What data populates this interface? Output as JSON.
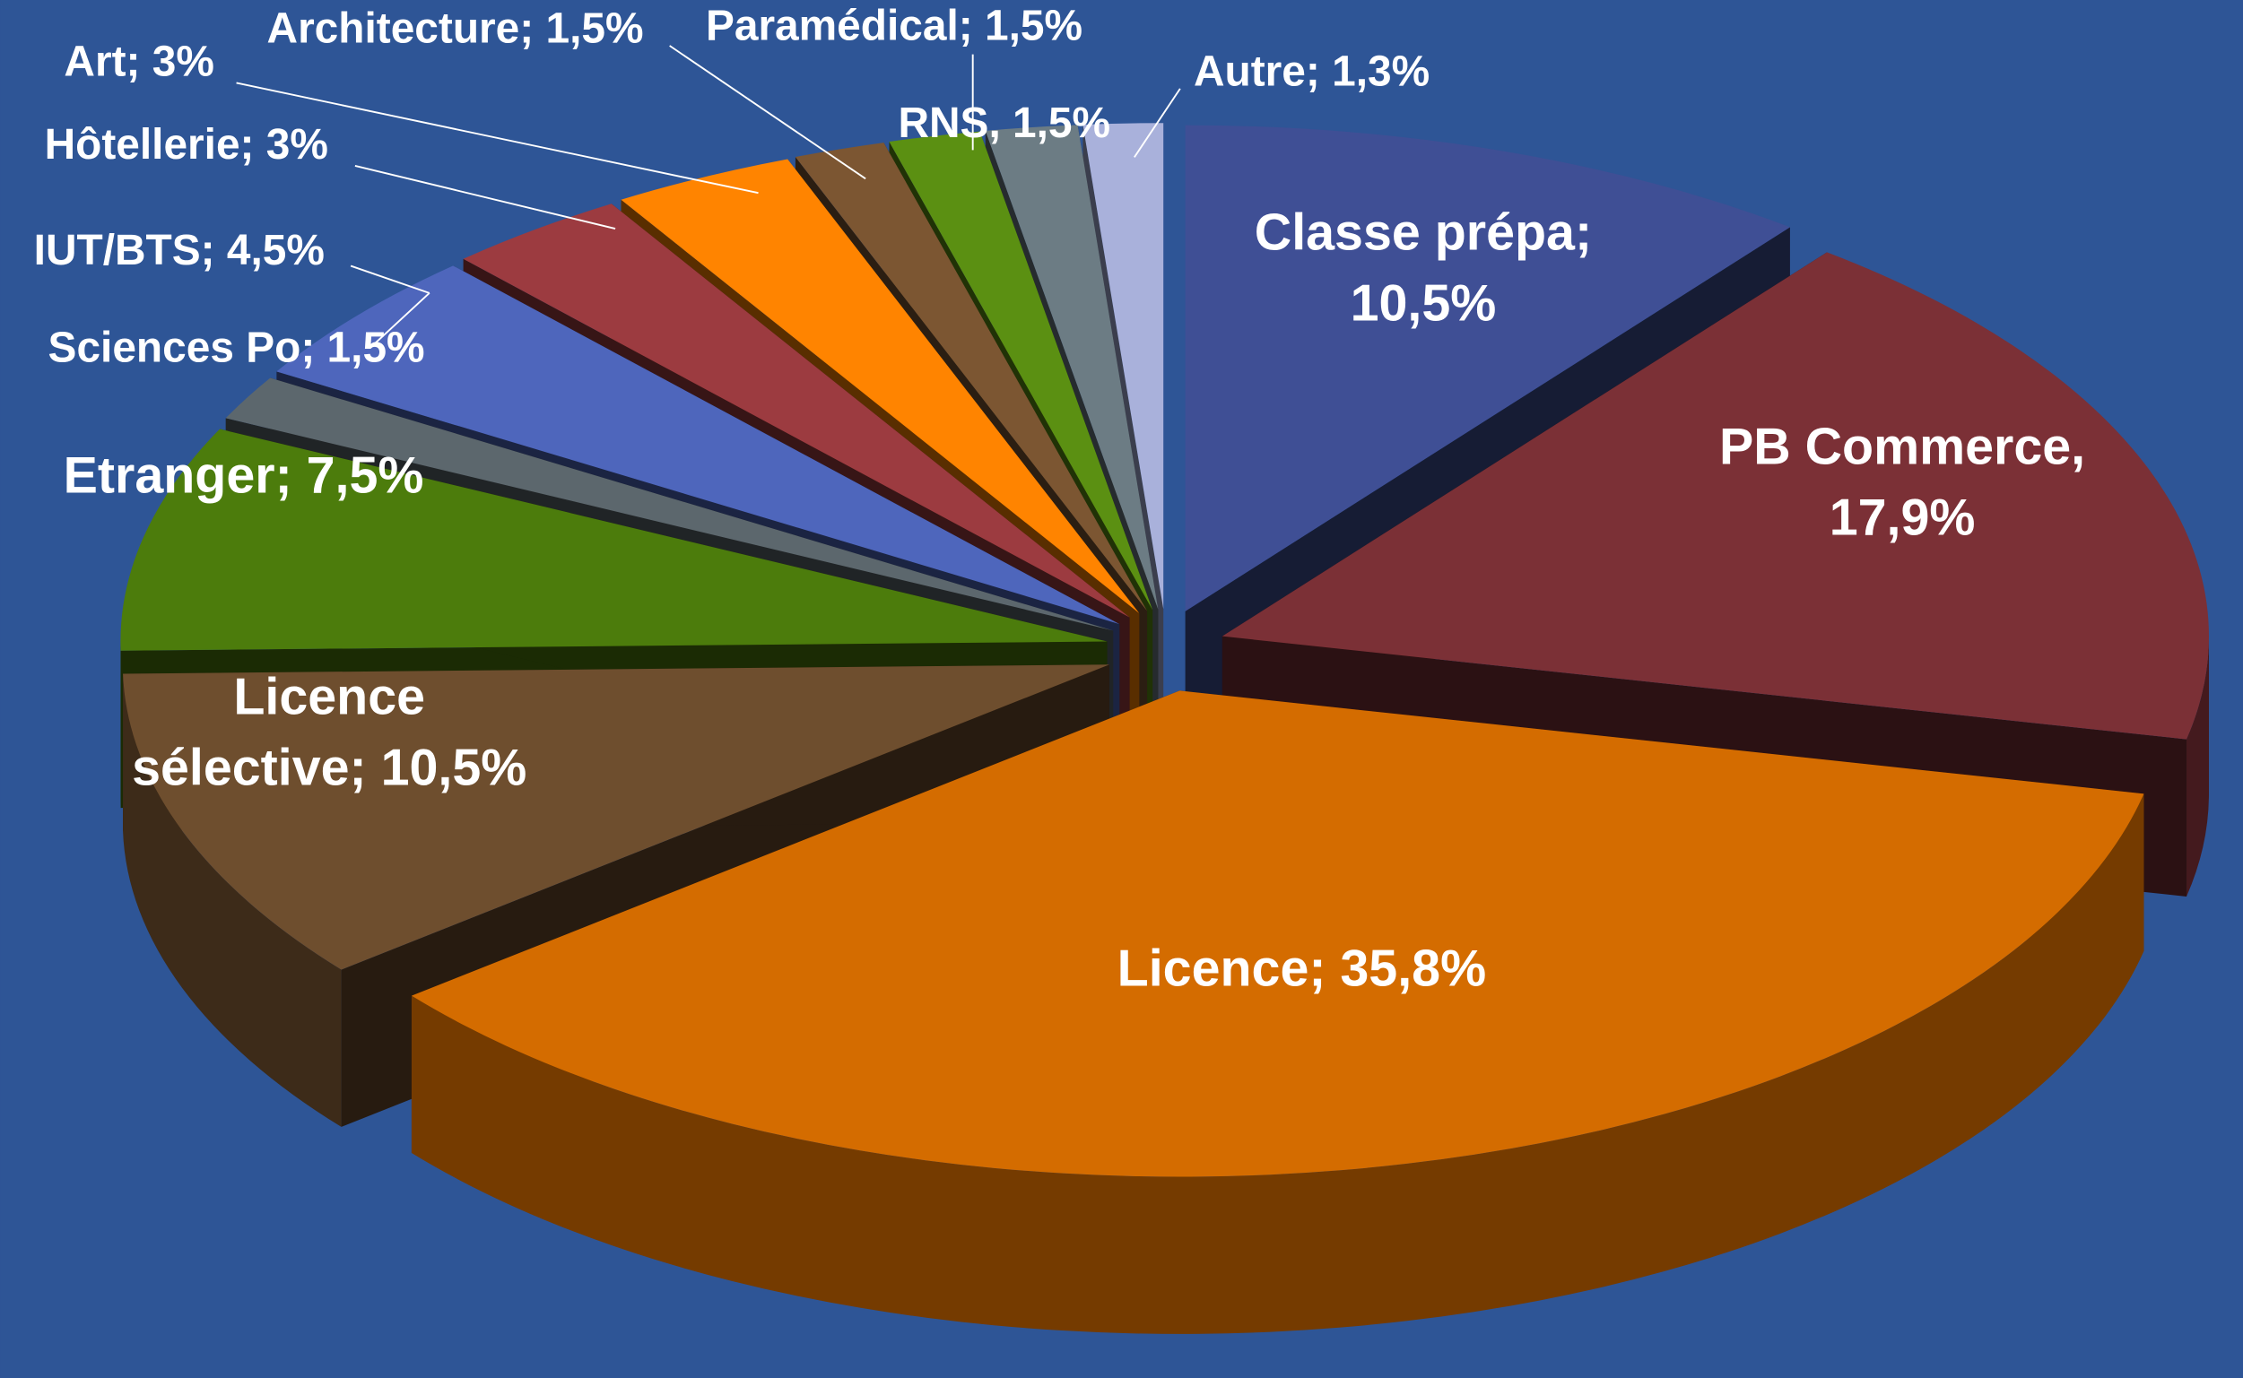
{
  "chart_data": {
    "type": "pie3d",
    "labels": [
      "Classe prépa; 10,5%",
      "PB Commerce, 17,9%",
      "Licence; 35,8%",
      "Licence sélective; 10,5%",
      "Etranger; 7,5%",
      "Sciences Po; 1,5%",
      "IUT/BTS; 4,5%",
      "Hôtellerie; 3%",
      "Art; 3%",
      "Architecture; 1,5%",
      "Paramédical; 1,5%",
      "RNS, 1,5%",
      "Autre; 1,3%"
    ],
    "values": [
      10.5,
      17.9,
      35.8,
      10.5,
      7.5,
      1.5,
      4.5,
      3,
      3,
      1.5,
      1.5,
      1.5,
      1.3
    ],
    "colors": [
      "#3f4f95",
      "#7b3036",
      "#d46c00",
      "#6e4e2e",
      "#4c7c0c",
      "#5c676d",
      "#4e66bc",
      "#9c3b40",
      "#ff8400",
      "#7c5632",
      "#5b9012",
      "#6c7c84",
      "#a9b1db"
    ]
  }
}
